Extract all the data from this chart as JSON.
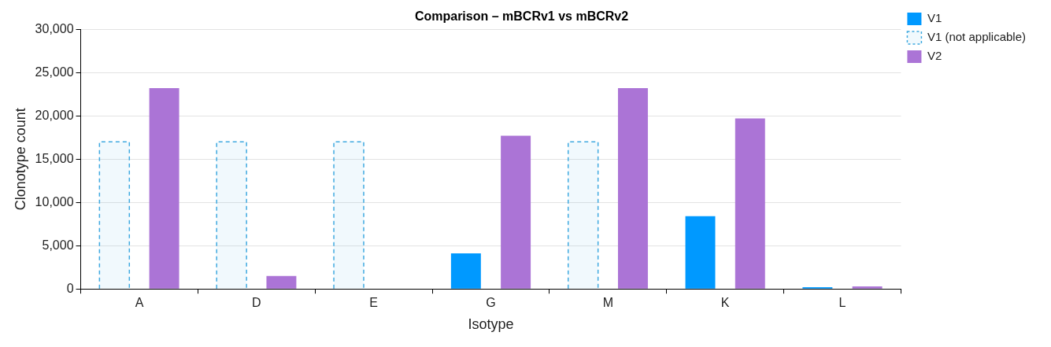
{
  "chart_data": {
    "type": "bar",
    "title": "Comparison – mBCRv1 vs mBCRv2",
    "xlabel": "Isotype",
    "ylabel": "Clonotype count",
    "categories": [
      "A",
      "D",
      "E",
      "G",
      "M",
      "K",
      "L"
    ],
    "series": [
      {
        "name": "V1",
        "color": "#0099ff",
        "values": [
          null,
          null,
          null,
          4100,
          null,
          8400,
          200
        ]
      },
      {
        "name": "V1 (not applicable)",
        "color": "#3fa9e0",
        "line_style": "dashed",
        "values": [
          17000,
          17000,
          17000,
          null,
          17000,
          null,
          null
        ]
      },
      {
        "name": "V2",
        "color": "#ab74d6",
        "values": [
          23200,
          1500,
          null,
          17700,
          23200,
          19700,
          300
        ]
      }
    ],
    "ylim": [
      0,
      30000
    ],
    "yticks": [
      0,
      {
        "value": 5000,
        "label": "5,000"
      },
      {
        "value": 10000,
        "label": "10,000"
      },
      {
        "value": 15000,
        "label": "15,000"
      },
      {
        "value": 20000,
        "label": "20,000"
      },
      {
        "value": 25000,
        "label": "25,000"
      },
      {
        "value": 30000,
        "label": "30,000"
      }
    ],
    "grid": "y",
    "legend": "top right"
  }
}
